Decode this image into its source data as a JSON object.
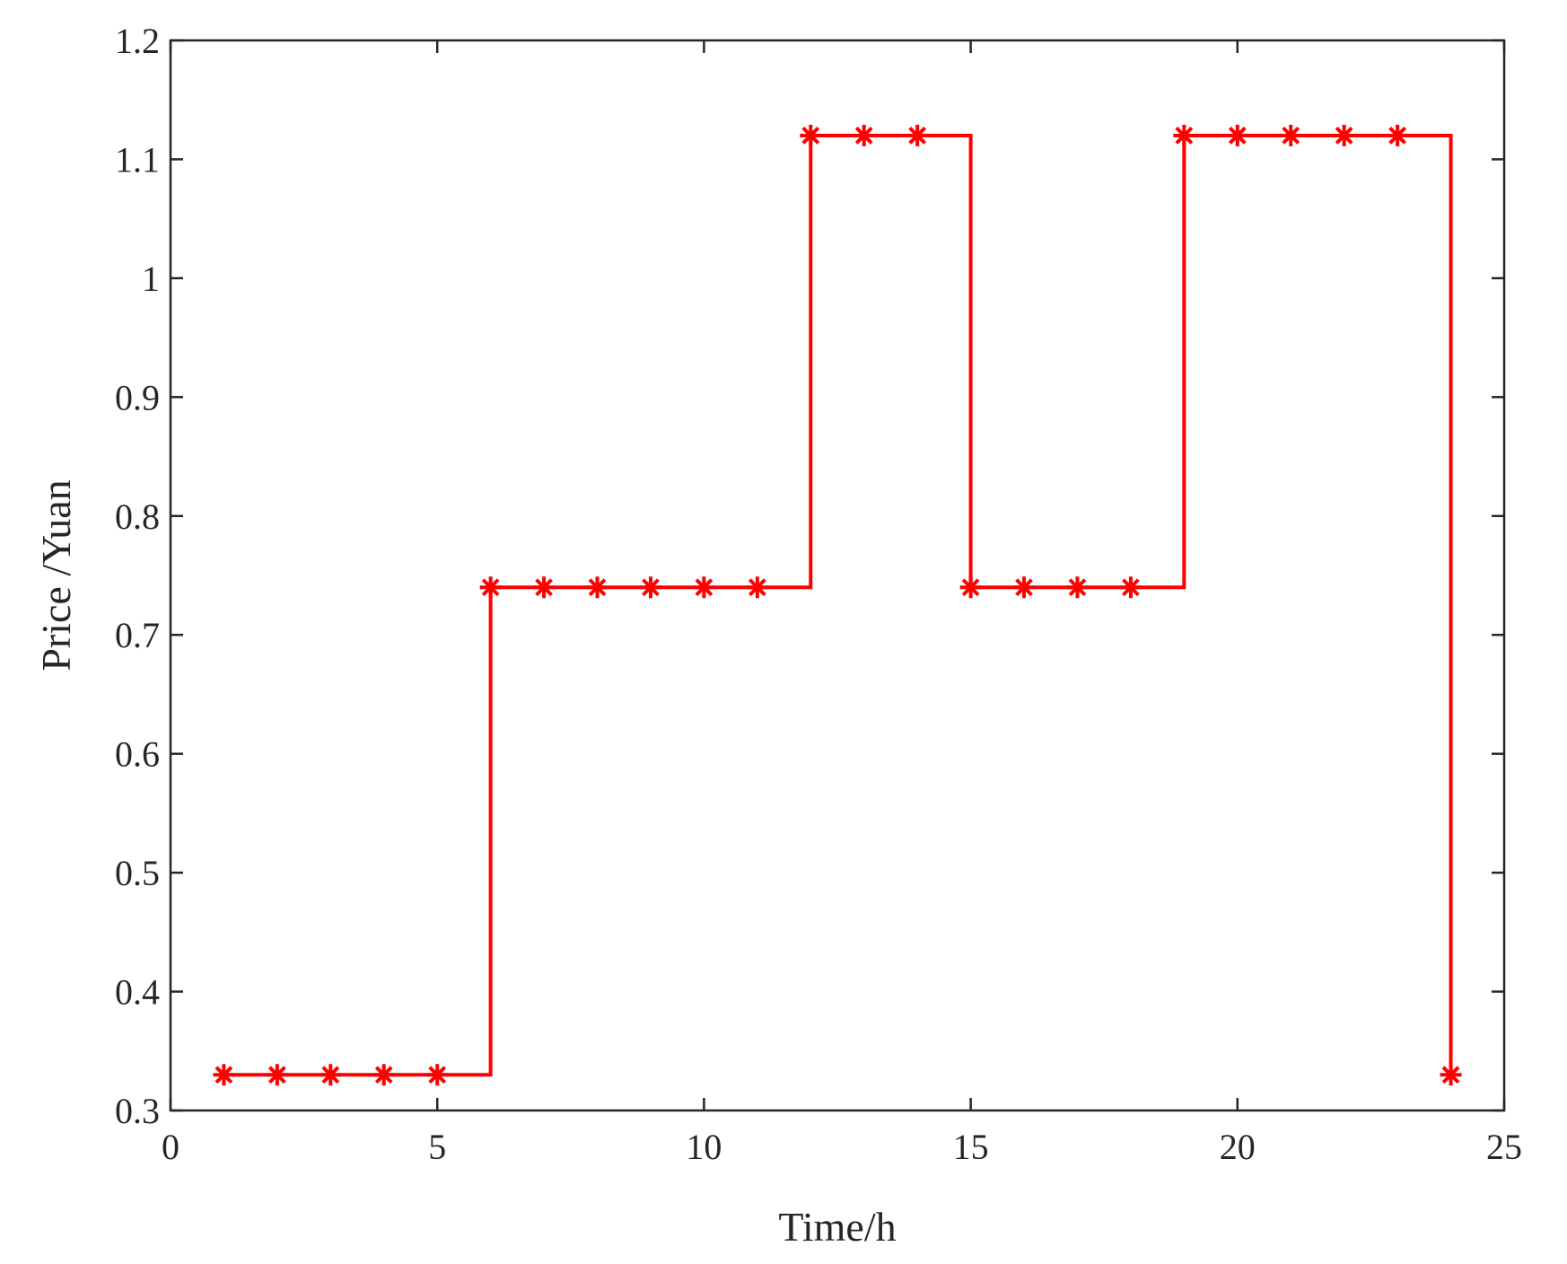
{
  "chart_data": {
    "type": "line",
    "style": "step-post",
    "title": "",
    "xlabel": "Time/h",
    "ylabel": "Price /Yuan",
    "xlim": [
      0,
      25
    ],
    "ylim": [
      0.3,
      1.2
    ],
    "xticks": [
      "0",
      "5",
      "10",
      "15",
      "20",
      "25"
    ],
    "yticks": [
      "0.3",
      "0.4",
      "0.5",
      "0.6",
      "0.7",
      "0.8",
      "0.9",
      "1",
      "1.1",
      "1.2"
    ],
    "grid": false,
    "legend": "none",
    "series": [
      {
        "color": "#ff0000",
        "marker": "asterisk",
        "x": [
          1,
          2,
          3,
          4,
          5,
          6,
          7,
          8,
          9,
          10,
          11,
          12,
          13,
          14,
          15,
          16,
          17,
          18,
          19,
          20,
          21,
          22,
          23,
          24
        ],
        "y": [
          0.33,
          0.33,
          0.33,
          0.33,
          0.33,
          0.74,
          0.74,
          0.74,
          0.74,
          0.74,
          0.74,
          1.12,
          1.12,
          1.12,
          0.74,
          0.74,
          0.74,
          0.74,
          1.12,
          1.12,
          1.12,
          1.12,
          1.12,
          0.33
        ]
      }
    ]
  }
}
